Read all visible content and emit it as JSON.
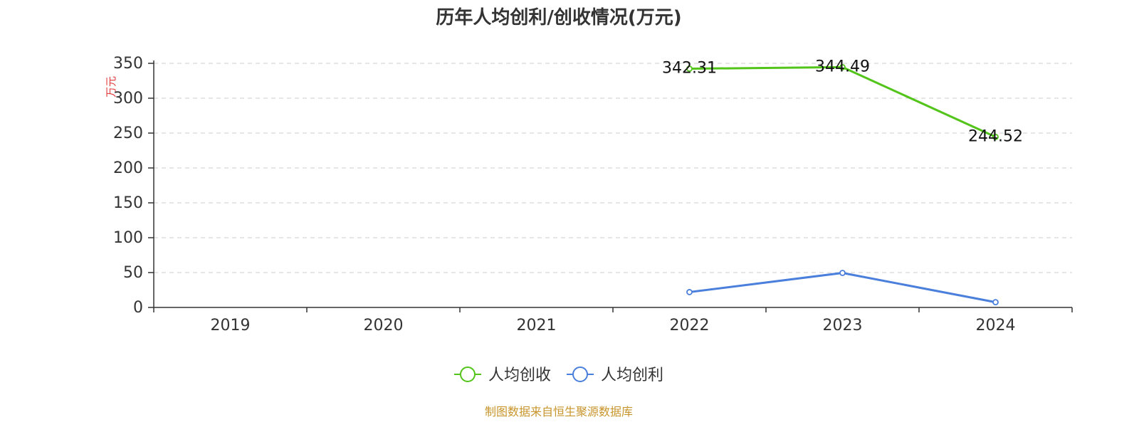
{
  "chart_data": {
    "type": "line",
    "title": "历年人均创利/创收情况(万元)",
    "ylabel": "万元",
    "xlabel": "",
    "ylim": [
      0,
      350
    ],
    "yticks": [
      0,
      50,
      100,
      150,
      200,
      250,
      300,
      350
    ],
    "categories": [
      "2019",
      "2020",
      "2021",
      "2022",
      "2023",
      "2024"
    ],
    "grid": true,
    "legend_position": "bottom-center",
    "series": [
      {
        "name": "人均创收",
        "color": "#52c41a",
        "values": [
          null,
          null,
          null,
          342.31,
          344.49,
          244.52
        ],
        "labels": [
          "",
          "",
          "",
          "342.31",
          "344.49",
          "244.52"
        ]
      },
      {
        "name": "人均创利",
        "color": "#4a7fdb",
        "values": [
          null,
          null,
          null,
          22,
          49.5,
          7.5
        ],
        "labels": [
          "",
          "",
          "",
          "",
          "",
          ""
        ]
      }
    ]
  },
  "footer": {
    "source": "制图数据来自恒生聚源数据库"
  }
}
